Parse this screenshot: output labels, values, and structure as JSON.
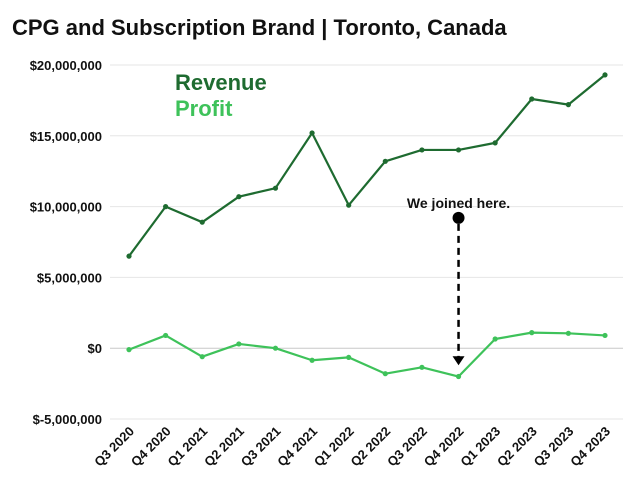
{
  "chart_data": {
    "type": "line",
    "title": "CPG and Subscription Brand | Toronto, Canada",
    "categories": [
      "Q3 2020",
      "Q4 2020",
      "Q1 2021",
      "Q2 2021",
      "Q3 2021",
      "Q4 2021",
      "Q1 2022",
      "Q2 2022",
      "Q3 2022",
      "Q4 2022",
      "Q1 2023",
      "Q2 2023",
      "Q3 2023",
      "Q4 2023"
    ],
    "series": [
      {
        "name": "Revenue",
        "color": "#1e6b30",
        "values": [
          6500000,
          10000000,
          8900000,
          10700000,
          11300000,
          15200000,
          10100000,
          13200000,
          14000000,
          14000000,
          14500000,
          17600000,
          17200000,
          19300000
        ]
      },
      {
        "name": "Profit",
        "color": "#3ec25a",
        "values": [
          -100000,
          900000,
          -600000,
          300000,
          0,
          -850000,
          -650000,
          -1800000,
          -1350000,
          -2000000,
          650000,
          1100000,
          1050000,
          900000
        ]
      }
    ],
    "ylim": [
      -5000000,
      20000000
    ],
    "yticks": [
      -5000000,
      0,
      5000000,
      10000000,
      15000000,
      20000000
    ],
    "ytick_labels": [
      "$-5,000,000",
      "$0",
      "$5,000,000",
      "$10,000,000",
      "$15,000,000",
      "$20,000,000"
    ],
    "grid": true,
    "legend_position": "top-left",
    "annotation": {
      "text": "We joined here.",
      "category": "Q4 2022",
      "from_value": 9200000,
      "to_value": -1200000
    }
  }
}
